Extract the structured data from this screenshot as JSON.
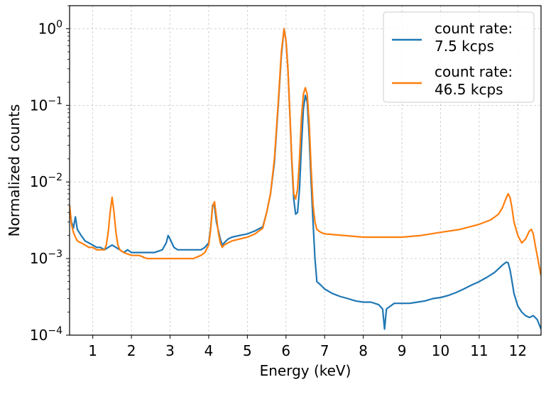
{
  "chart_data": {
    "type": "line",
    "xlabel": "Energy (keV)",
    "ylabel": "Normalized counts",
    "xlim": [
      0.4,
      12.6
    ],
    "ylim": [
      0.0001,
      2.0
    ],
    "yscale": "log",
    "grid": true,
    "legend_position": "top-right",
    "x_ticks": [
      "1",
      "2",
      "3",
      "4",
      "5",
      "6",
      "7",
      "8",
      "9",
      "10",
      "11",
      "12"
    ],
    "y_ticks": [
      {
        "base": "10",
        "exp": "0",
        "value": 1
      },
      {
        "base": "10",
        "exp": "−1",
        "value": 0.1
      },
      {
        "base": "10",
        "exp": "−2",
        "value": 0.01
      },
      {
        "base": "10",
        "exp": "−3",
        "value": 0.001
      },
      {
        "base": "10",
        "exp": "−4",
        "value": 0.0001
      }
    ],
    "series": [
      {
        "name_line1": "count rate:",
        "name_line2": "7.5 kcps",
        "color": "#1f77b4",
        "x": [
          0.4,
          0.45,
          0.5,
          0.55,
          0.6,
          0.7,
          0.8,
          0.9,
          1.0,
          1.1,
          1.2,
          1.3,
          1.4,
          1.5,
          1.6,
          1.7,
          1.8,
          1.9,
          2.0,
          2.2,
          2.4,
          2.6,
          2.8,
          2.9,
          2.95,
          3.0,
          3.1,
          3.2,
          3.4,
          3.6,
          3.8,
          3.9,
          4.0,
          4.05,
          4.1,
          4.15,
          4.2,
          4.3,
          4.35,
          4.4,
          4.5,
          4.6,
          4.8,
          5.0,
          5.2,
          5.4,
          5.5,
          5.6,
          5.7,
          5.8,
          5.88,
          5.95,
          6.0,
          6.05,
          6.1,
          6.15,
          6.2,
          6.25,
          6.3,
          6.35,
          6.4,
          6.45,
          6.5,
          6.55,
          6.6,
          6.65,
          6.7,
          6.75,
          6.8,
          6.9,
          7.0,
          7.2,
          7.4,
          7.6,
          7.8,
          8.0,
          8.2,
          8.4,
          8.5,
          8.55,
          8.6,
          8.8,
          9.0,
          9.2,
          9.4,
          9.6,
          9.8,
          10.0,
          10.2,
          10.4,
          10.6,
          10.8,
          11.0,
          11.2,
          11.4,
          11.6,
          11.7,
          11.75,
          11.8,
          11.85,
          11.9,
          12.0,
          12.1,
          12.2,
          12.3,
          12.4,
          12.5,
          12.6
        ],
        "y": [
          0.0045,
          0.003,
          0.0025,
          0.0035,
          0.0024,
          0.002,
          0.0017,
          0.0016,
          0.0015,
          0.0014,
          0.0014,
          0.0013,
          0.0014,
          0.0015,
          0.0014,
          0.0013,
          0.0012,
          0.0013,
          0.0012,
          0.0012,
          0.0012,
          0.0012,
          0.0013,
          0.0016,
          0.002,
          0.0018,
          0.0014,
          0.0013,
          0.0013,
          0.0013,
          0.0013,
          0.0014,
          0.0016,
          0.0025,
          0.005,
          0.0048,
          0.003,
          0.0018,
          0.0015,
          0.0016,
          0.0018,
          0.0019,
          0.002,
          0.0021,
          0.0023,
          0.0026,
          0.004,
          0.007,
          0.018,
          0.1,
          0.45,
          1.0,
          0.7,
          0.3,
          0.08,
          0.018,
          0.006,
          0.0038,
          0.004,
          0.008,
          0.03,
          0.09,
          0.135,
          0.11,
          0.04,
          0.01,
          0.003,
          0.001,
          0.0005,
          0.00045,
          0.0004,
          0.00035,
          0.00032,
          0.0003,
          0.00028,
          0.00027,
          0.00027,
          0.00025,
          0.00022,
          0.00012,
          0.00022,
          0.00026,
          0.00026,
          0.00026,
          0.00027,
          0.00028,
          0.0003,
          0.00031,
          0.00033,
          0.00036,
          0.0004,
          0.00045,
          0.0005,
          0.00057,
          0.00066,
          0.00082,
          0.0009,
          0.00088,
          0.0007,
          0.0005,
          0.00035,
          0.00024,
          0.0002,
          0.00018,
          0.00017,
          0.00018,
          0.00016,
          0.00012
        ]
      },
      {
        "name_line1": "count rate:",
        "name_line2": "46.5 kcps",
        "color": "#ff7f0e",
        "x": [
          0.4,
          0.45,
          0.5,
          0.55,
          0.6,
          0.7,
          0.8,
          0.9,
          1.0,
          1.1,
          1.2,
          1.3,
          1.35,
          1.4,
          1.45,
          1.5,
          1.55,
          1.6,
          1.65,
          1.7,
          1.8,
          2.0,
          2.2,
          2.4,
          2.6,
          2.8,
          3.0,
          3.2,
          3.4,
          3.6,
          3.8,
          3.9,
          4.0,
          4.05,
          4.1,
          4.15,
          4.2,
          4.25,
          4.3,
          4.35,
          4.4,
          4.5,
          4.6,
          4.8,
          5.0,
          5.2,
          5.4,
          5.5,
          5.6,
          5.7,
          5.8,
          5.88,
          5.95,
          6.0,
          6.05,
          6.1,
          6.15,
          6.2,
          6.25,
          6.3,
          6.35,
          6.4,
          6.45,
          6.5,
          6.55,
          6.6,
          6.65,
          6.7,
          6.75,
          6.8,
          6.9,
          7.0,
          7.5,
          8.0,
          8.5,
          9.0,
          9.5,
          10.0,
          10.5,
          11.0,
          11.3,
          11.5,
          11.6,
          11.7,
          11.75,
          11.8,
          11.85,
          11.9,
          12.0,
          12.1,
          12.2,
          12.3,
          12.35,
          12.4,
          12.45,
          12.5,
          12.55,
          12.6
        ],
        "y": [
          0.005,
          0.0028,
          0.0022,
          0.0019,
          0.0017,
          0.0016,
          0.0015,
          0.0014,
          0.0014,
          0.0013,
          0.0013,
          0.0013,
          0.0015,
          0.0022,
          0.004,
          0.0063,
          0.004,
          0.0022,
          0.0015,
          0.0013,
          0.0012,
          0.0011,
          0.0011,
          0.001,
          0.001,
          0.001,
          0.001,
          0.001,
          0.001,
          0.001,
          0.0011,
          0.0012,
          0.0015,
          0.0024,
          0.0048,
          0.0055,
          0.0035,
          0.0022,
          0.0016,
          0.0014,
          0.0015,
          0.0016,
          0.0017,
          0.0018,
          0.0019,
          0.0021,
          0.0025,
          0.004,
          0.007,
          0.02,
          0.11,
          0.5,
          1.0,
          0.7,
          0.3,
          0.08,
          0.02,
          0.007,
          0.006,
          0.008,
          0.02,
          0.07,
          0.14,
          0.17,
          0.14,
          0.06,
          0.015,
          0.005,
          0.003,
          0.0024,
          0.0022,
          0.0021,
          0.002,
          0.0019,
          0.0019,
          0.0019,
          0.002,
          0.0022,
          0.0024,
          0.0028,
          0.0032,
          0.0038,
          0.0046,
          0.0062,
          0.007,
          0.0062,
          0.0045,
          0.003,
          0.002,
          0.0016,
          0.0018,
          0.0023,
          0.0024,
          0.0021,
          0.0015,
          0.0011,
          0.0008,
          0.0006
        ]
      }
    ]
  }
}
